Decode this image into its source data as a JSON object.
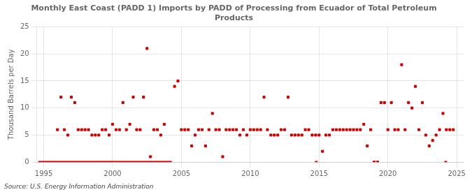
{
  "chart_data": {
    "type": "scatter",
    "title": "Monthly East Coast (PADD 1) Imports by PADD of Processing from Ecuador of Total Petroleum\nProducts",
    "ylabel": "Thousand Barrels per Day",
    "annotation": "Source: U.S. Energy Information Administration",
    "xlim": [
      1994.5,
      2025.5
    ],
    "xticks": [
      1995,
      2000,
      2005,
      2010,
      2015,
      2020,
      2025
    ],
    "ylim": [
      0,
      25
    ],
    "yticks": [
      0,
      5,
      10,
      15,
      20,
      25
    ],
    "grid": true,
    "series": [
      {
        "type": "scatter",
        "marker": "square",
        "color": "#cc0000",
        "x": [
          1996.0,
          1996.25,
          1996.5,
          1996.75,
          1997.0,
          1997.25,
          1997.5,
          1997.75,
          1998.0,
          1998.25,
          1998.5,
          1998.75,
          1999.0,
          1999.25,
          1999.5,
          1999.75,
          2000.0,
          2000.25,
          2000.5,
          2000.75,
          2001.0,
          2001.25,
          2001.5,
          2001.75,
          2002.0,
          2002.25,
          2002.5,
          2002.75,
          2003.0,
          2003.25,
          2003.5,
          2003.75,
          2004.5,
          2004.75,
          2005.0,
          2005.25,
          2005.5,
          2005.75,
          2006.0,
          2006.25,
          2006.5,
          2006.75,
          2007.0,
          2007.25,
          2007.5,
          2007.75,
          2008.0,
          2008.25,
          2008.5,
          2008.75,
          2009.0,
          2009.25,
          2009.5,
          2009.75,
          2010.0,
          2010.25,
          2010.5,
          2010.75,
          2011.0,
          2011.25,
          2011.5,
          2011.75,
          2012.0,
          2012.25,
          2012.5,
          2012.75,
          2013.0,
          2013.25,
          2013.5,
          2013.75,
          2014.0,
          2014.25,
          2014.5,
          2014.75,
          2015.0,
          2015.25,
          2015.5,
          2015.75,
          2016.0,
          2016.25,
          2016.5,
          2016.75,
          2017.0,
          2017.25,
          2017.5,
          2017.75,
          2018.0,
          2018.25,
          2018.5,
          2018.75,
          2019.0,
          2019.25,
          2019.5,
          2019.75,
          2020.0,
          2020.25,
          2020.5,
          2020.75,
          2021.0,
          2021.25,
          2021.5,
          2021.75,
          2022.0,
          2022.25,
          2022.5,
          2022.75,
          2023.0,
          2023.25,
          2023.5,
          2023.75,
          2024.0,
          2024.25,
          2024.5,
          2024.75
        ],
        "values": [
          6,
          12,
          6,
          5,
          12,
          11,
          6,
          6,
          6,
          6,
          5,
          5,
          5,
          6,
          6,
          5,
          7,
          6,
          6,
          11,
          6,
          7,
          12,
          6,
          6,
          12,
          21,
          1,
          6,
          6,
          5,
          7,
          14,
          15,
          6,
          6,
          6,
          3,
          5,
          6,
          6,
          3,
          6,
          9,
          6,
          6,
          1,
          6,
          6,
          6,
          6,
          5,
          6,
          5,
          6,
          6,
          6,
          6,
          12,
          6,
          5,
          5,
          5,
          6,
          6,
          12,
          5,
          5,
          5,
          5,
          6,
          6,
          5,
          5,
          5,
          2,
          5,
          5,
          6,
          6,
          6,
          6,
          6,
          6,
          6,
          6,
          6,
          7,
          3,
          6,
          0,
          0,
          11,
          11,
          6,
          11,
          6,
          6,
          18,
          6,
          11,
          10,
          14,
          6,
          11,
          5,
          3,
          4,
          5,
          6,
          9,
          6,
          6,
          6
        ]
      },
      {
        "type": "line",
        "line_style": "solid",
        "color": "#cc0000",
        "x": [
          1994.6,
          2004.3
        ],
        "values": [
          0,
          0
        ]
      },
      {
        "type": "line",
        "line_style": "solid",
        "color": "#cc0000",
        "x": [
          2014.7,
          2014.9
        ],
        "values": [
          0,
          0
        ]
      },
      {
        "type": "line",
        "line_style": "solid",
        "color": "#cc0000",
        "x": [
          2024.1,
          2024.3
        ],
        "values": [
          0,
          0
        ]
      }
    ]
  }
}
